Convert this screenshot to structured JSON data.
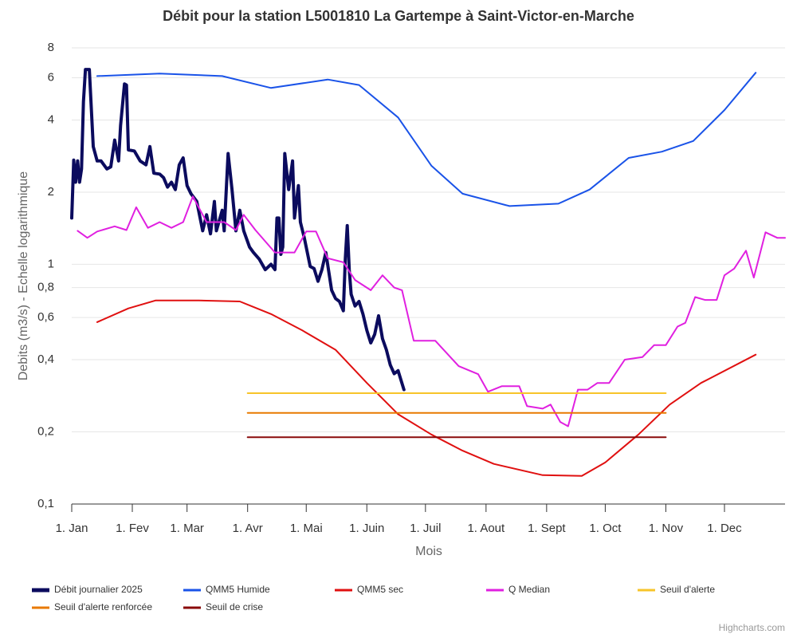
{
  "chart_data": {
    "type": "line",
    "title": "Débit pour la station L5001810 La Gartempe à Saint-Victor-en-Marche",
    "x_label": "Mois",
    "y_label": "Debits (m3/s) - Echelle logarithmique",
    "credit": "Highcharts.com",
    "yscale": "log",
    "grid": true,
    "legend": "bottom",
    "xlim": [
      0,
      365
    ],
    "xticks": [
      {
        "value": 0,
        "label": "1. Jan"
      },
      {
        "value": 31,
        "label": "1. Fev"
      },
      {
        "value": 59,
        "label": "1. Mar"
      },
      {
        "value": 90,
        "label": "1. Avr"
      },
      {
        "value": 120,
        "label": "1. Mai"
      },
      {
        "value": 151,
        "label": "1. Juin"
      },
      {
        "value": 181,
        "label": "1. Juil"
      },
      {
        "value": 212,
        "label": "1. Aout"
      },
      {
        "value": 243,
        "label": "1. Sept"
      },
      {
        "value": 273,
        "label": "1. Oct"
      },
      {
        "value": 304,
        "label": "1. Nov"
      },
      {
        "value": 334,
        "label": "1. Dec"
      }
    ],
    "ylim": [
      0.1,
      8
    ],
    "yticks": [
      {
        "value": 0.1,
        "label": "0,1"
      },
      {
        "value": 0.2,
        "label": "0,2"
      },
      {
        "value": 0.4,
        "label": "0,4"
      },
      {
        "value": 0.6,
        "label": "0,6"
      },
      {
        "value": 0.8,
        "label": "0,8"
      },
      1,
      2,
      4,
      6,
      8
    ],
    "series": [
      {
        "name": "Débit journalier 2025",
        "color": "#0b0b5e",
        "width": 4,
        "x": [
          0,
          1,
          2,
          3,
          4,
          5,
          6,
          7,
          9,
          11,
          13,
          15,
          18,
          20,
          22,
          24,
          25,
          27,
          28,
          29,
          32,
          35,
          38,
          40,
          42,
          45,
          47,
          49,
          51,
          53,
          55,
          57,
          59,
          61,
          64,
          67,
          69,
          71,
          73,
          74,
          77,
          78,
          80,
          82,
          84,
          86,
          88,
          91,
          93,
          96,
          99,
          102,
          104,
          105,
          106,
          107,
          108,
          109,
          111,
          113,
          114,
          116,
          117,
          119,
          122,
          124,
          126,
          128,
          130,
          133,
          135,
          137,
          139,
          140,
          141,
          142,
          143,
          145,
          147,
          149,
          151,
          153,
          155,
          157,
          159,
          161,
          163,
          165,
          167,
          170
        ],
        "values": [
          1.56,
          2.72,
          2.2,
          2.7,
          2.2,
          2.5,
          4.77,
          6.5,
          6.5,
          3.1,
          2.7,
          2.7,
          2.5,
          2.55,
          3.3,
          2.7,
          3.8,
          5.66,
          5.6,
          3.0,
          2.97,
          2.7,
          2.6,
          3.1,
          2.4,
          2.38,
          2.3,
          2.1,
          2.2,
          2.05,
          2.6,
          2.78,
          2.13,
          1.97,
          1.83,
          1.38,
          1.61,
          1.34,
          1.83,
          1.38,
          1.68,
          1.38,
          2.9,
          2.05,
          1.38,
          1.68,
          1.38,
          1.18,
          1.12,
          1.05,
          0.95,
          1.0,
          0.95,
          1.56,
          1.56,
          1.1,
          1.18,
          2.9,
          2.05,
          2.7,
          1.56,
          2.13,
          1.5,
          1.29,
          0.98,
          0.96,
          0.85,
          0.95,
          1.12,
          0.78,
          0.72,
          0.7,
          0.64,
          1.06,
          1.45,
          0.95,
          0.75,
          0.67,
          0.7,
          0.62,
          0.53,
          0.47,
          0.51,
          0.61,
          0.49,
          0.44,
          0.38,
          0.35,
          0.36,
          0.3
        ]
      },
      {
        "name": "QMM5 Humide",
        "color": "#1a53e8",
        "width": 2,
        "x": [
          13,
          45,
          77,
          102,
          131,
          147,
          167,
          184,
          200,
          224,
          249,
          265,
          285,
          302,
          318,
          334,
          350
        ],
        "values": [
          6.1,
          6.25,
          6.1,
          5.44,
          5.9,
          5.6,
          4.1,
          2.58,
          1.97,
          1.75,
          1.79,
          2.05,
          2.78,
          2.95,
          3.27,
          4.4,
          6.3
        ]
      },
      {
        "name": "QMM5 sec",
        "color": "#e01010",
        "width": 2,
        "x": [
          13,
          29,
          43,
          65,
          86,
          102,
          118,
          135,
          151,
          167,
          184,
          200,
          216,
          241,
          261,
          273,
          290,
          306,
          322,
          350
        ],
        "values": [
          0.574,
          0.655,
          0.707,
          0.707,
          0.7,
          0.62,
          0.53,
          0.44,
          0.32,
          0.237,
          0.195,
          0.167,
          0.147,
          0.132,
          0.131,
          0.149,
          0.195,
          0.26,
          0.32,
          0.42
        ]
      },
      {
        "name": "Q Median",
        "color": "#e020e0",
        "width": 2,
        "x": [
          3,
          8,
          13,
          22,
          28,
          33,
          39,
          45,
          51,
          57,
          62,
          69,
          78,
          84,
          88,
          94,
          104,
          114,
          120,
          125,
          131,
          139,
          145,
          153,
          159,
          165,
          169,
          175,
          186,
          198,
          208,
          213,
          220,
          229,
          233,
          241,
          245,
          250,
          254,
          259,
          264,
          269,
          275,
          283,
          292,
          298,
          304,
          310,
          314,
          319,
          324,
          330,
          334,
          339,
          345,
          349,
          355,
          361,
          365
        ],
        "values": [
          1.38,
          1.29,
          1.37,
          1.44,
          1.39,
          1.73,
          1.42,
          1.5,
          1.42,
          1.5,
          1.92,
          1.5,
          1.5,
          1.39,
          1.61,
          1.39,
          1.12,
          1.12,
          1.37,
          1.37,
          1.06,
          1.02,
          0.86,
          0.78,
          0.9,
          0.8,
          0.78,
          0.48,
          0.48,
          0.376,
          0.348,
          0.294,
          0.31,
          0.31,
          0.256,
          0.25,
          0.26,
          0.22,
          0.211,
          0.3,
          0.3,
          0.32,
          0.32,
          0.4,
          0.41,
          0.46,
          0.46,
          0.55,
          0.57,
          0.73,
          0.71,
          0.71,
          0.9,
          0.96,
          1.14,
          0.88,
          1.36,
          1.29,
          1.29
        ]
      },
      {
        "name": "Seuil d'alerte",
        "color": "#f7c42a",
        "width": 2,
        "x": [
          90,
          304
        ],
        "values": [
          0.29,
          0.29
        ]
      },
      {
        "name": "Seuil d'alerte renforcée",
        "color": "#e87a00",
        "width": 2,
        "x": [
          90,
          304
        ],
        "values": [
          0.24,
          0.24
        ]
      },
      {
        "name": "Seuil de crise",
        "color": "#8a0a0a",
        "width": 2,
        "x": [
          90,
          304
        ],
        "values": [
          0.19,
          0.19
        ]
      }
    ]
  }
}
